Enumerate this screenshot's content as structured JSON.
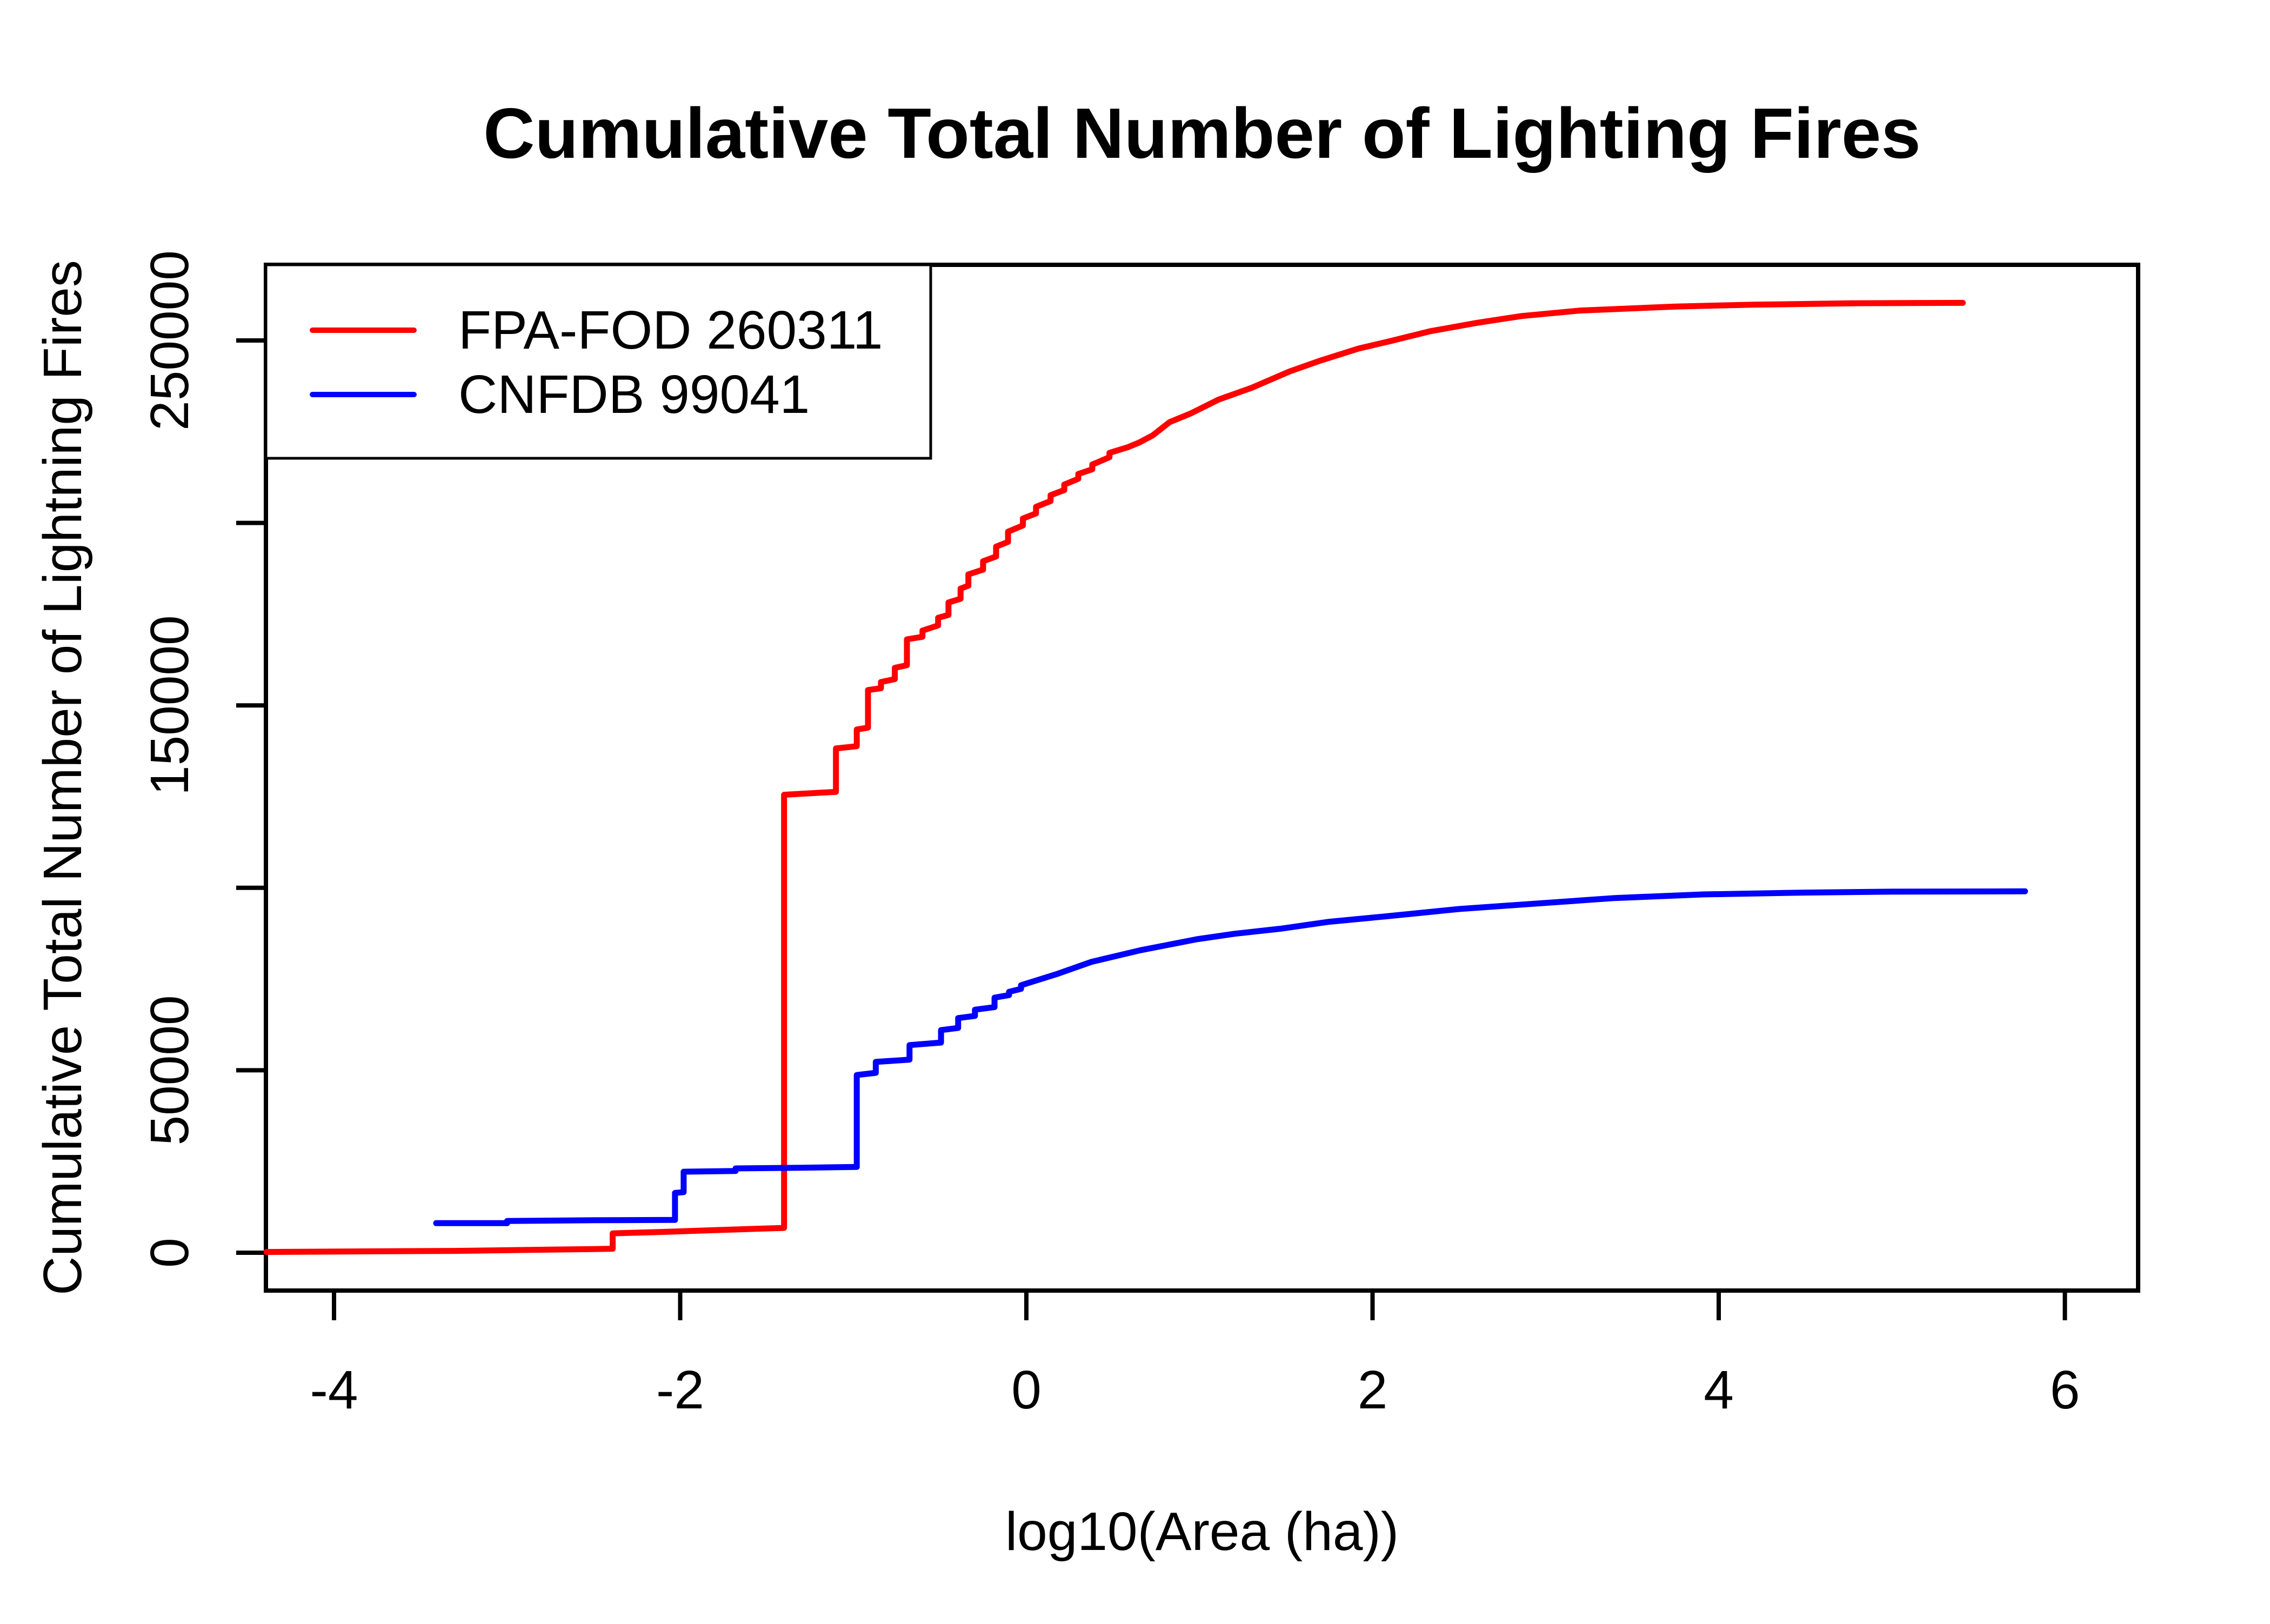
{
  "chart_data": {
    "type": "line",
    "subtype": "cumulative-step-curves",
    "title": "Cumulative Total Number of Lighting Fires",
    "xlabel": "log10(Area (ha))",
    "ylabel": "Cumulative Total Number of Lightning Fires",
    "xlim": [
      -4.4,
      6.4
    ],
    "ylim": [
      0,
      272000
    ],
    "grid": false,
    "legend_position": "topleft",
    "axis_color": "#000000",
    "background_color": "#FFFFFF",
    "x_ticks": [
      {
        "v": -4,
        "label": "-4"
      },
      {
        "v": -2,
        "label": "-2"
      },
      {
        "v": 0,
        "label": "0"
      },
      {
        "v": 2,
        "label": "2"
      },
      {
        "v": 4,
        "label": "4"
      },
      {
        "v": 6,
        "label": "6"
      }
    ],
    "y_ticks": [
      {
        "v": 0,
        "label": "0"
      },
      {
        "v": 50000,
        "label": "50000"
      },
      {
        "v": 100000,
        "label": ""
      },
      {
        "v": 150000,
        "label": "150000"
      },
      {
        "v": 200000,
        "label": ""
      },
      {
        "v": 250000,
        "label": "250000"
      }
    ],
    "series": [
      {
        "name": "FPA-FOD 260311",
        "color": "#FF0000",
        "total_fires": 260311,
        "points": [
          [
            -4.39,
            200
          ],
          [
            -3.3,
            500
          ],
          [
            -2.5,
            1000
          ],
          [
            -2.39,
            1100
          ],
          [
            -2.39,
            5300
          ],
          [
            -2.1,
            5700
          ],
          [
            -1.85,
            6100
          ],
          [
            -1.6,
            6500
          ],
          [
            -1.4,
            6800
          ],
          [
            -1.4,
            125500
          ],
          [
            -1.1,
            126300
          ],
          [
            -1.1,
            138200
          ],
          [
            -0.98,
            138800
          ],
          [
            -0.98,
            143400
          ],
          [
            -0.915,
            143900
          ],
          [
            -0.915,
            154200
          ],
          [
            -0.84,
            154700
          ],
          [
            -0.84,
            156400
          ],
          [
            -0.76,
            157200
          ],
          [
            -0.76,
            160300
          ],
          [
            -0.69,
            161000
          ],
          [
            -0.69,
            168100
          ],
          [
            -0.6,
            168800
          ],
          [
            -0.6,
            170500
          ],
          [
            -0.51,
            171900
          ],
          [
            -0.51,
            174000
          ],
          [
            -0.45,
            174800
          ],
          [
            -0.45,
            178200
          ],
          [
            -0.38,
            179200
          ],
          [
            -0.38,
            182000
          ],
          [
            -0.335,
            182800
          ],
          [
            -0.335,
            185900
          ],
          [
            -0.25,
            187200
          ],
          [
            -0.25,
            189500
          ],
          [
            -0.175,
            190800
          ],
          [
            -0.175,
            193500
          ],
          [
            -0.106,
            194800
          ],
          [
            -0.106,
            197600
          ],
          [
            -0.02,
            199300
          ],
          [
            -0.02,
            201200
          ],
          [
            0.056,
            202600
          ],
          [
            0.056,
            204400
          ],
          [
            0.14,
            206000
          ],
          [
            0.14,
            207600
          ],
          [
            0.219,
            209000
          ],
          [
            0.219,
            210500
          ],
          [
            0.3,
            212100
          ],
          [
            0.3,
            213400
          ],
          [
            0.381,
            214700
          ],
          [
            0.381,
            216000
          ],
          [
            0.48,
            218000
          ],
          [
            0.48,
            219200
          ],
          [
            0.584,
            220700
          ],
          [
            0.65,
            222000
          ],
          [
            0.73,
            224000
          ],
          [
            0.827,
            227600
          ],
          [
            0.95,
            230000
          ],
          [
            1.11,
            233800
          ],
          [
            1.3,
            237000
          ],
          [
            1.52,
            241500
          ],
          [
            1.7,
            244500
          ],
          [
            1.92,
            247800
          ],
          [
            2.1,
            249800
          ],
          [
            2.33,
            252500
          ],
          [
            2.6,
            254800
          ],
          [
            2.86,
            256700
          ],
          [
            3.2,
            258200
          ],
          [
            3.75,
            259300
          ],
          [
            4.2,
            259800
          ],
          [
            4.8,
            260200
          ],
          [
            5.41,
            260311
          ]
        ]
      },
      {
        "name": "CNFDB 99041",
        "color": "#0000FF",
        "total_fires": 99041,
        "points": [
          [
            -3.41,
            8100
          ],
          [
            -3.0,
            8100
          ],
          [
            -3.0,
            8700
          ],
          [
            -2.5,
            8900
          ],
          [
            -2.03,
            9000
          ],
          [
            -2.03,
            16400
          ],
          [
            -1.98,
            16600
          ],
          [
            -1.98,
            22200
          ],
          [
            -1.68,
            22400
          ],
          [
            -1.68,
            23100
          ],
          [
            -1.3,
            23300
          ],
          [
            -0.98,
            23500
          ],
          [
            -0.98,
            48700
          ],
          [
            -0.87,
            49300
          ],
          [
            -0.87,
            52300
          ],
          [
            -0.675,
            52900
          ],
          [
            -0.675,
            56900
          ],
          [
            -0.493,
            57600
          ],
          [
            -0.493,
            61000
          ],
          [
            -0.394,
            61600
          ],
          [
            -0.394,
            64300
          ],
          [
            -0.297,
            64900
          ],
          [
            -0.297,
            66600
          ],
          [
            -0.184,
            67300
          ],
          [
            -0.184,
            69900
          ],
          [
            -0.1,
            70600
          ],
          [
            -0.1,
            71500
          ],
          [
            -0.031,
            72300
          ],
          [
            -0.031,
            73300
          ],
          [
            0.172,
            76300
          ],
          [
            0.375,
            79700
          ],
          [
            0.659,
            82900
          ],
          [
            0.984,
            85900
          ],
          [
            1.2,
            87400
          ],
          [
            1.47,
            88800
          ],
          [
            1.75,
            90700
          ],
          [
            2.08,
            92200
          ],
          [
            2.5,
            94200
          ],
          [
            2.89,
            95500
          ],
          [
            3.4,
            97200
          ],
          [
            3.91,
            98200
          ],
          [
            4.5,
            98700
          ],
          [
            5.0,
            98950
          ],
          [
            5.77,
            99041
          ]
        ]
      }
    ]
  }
}
